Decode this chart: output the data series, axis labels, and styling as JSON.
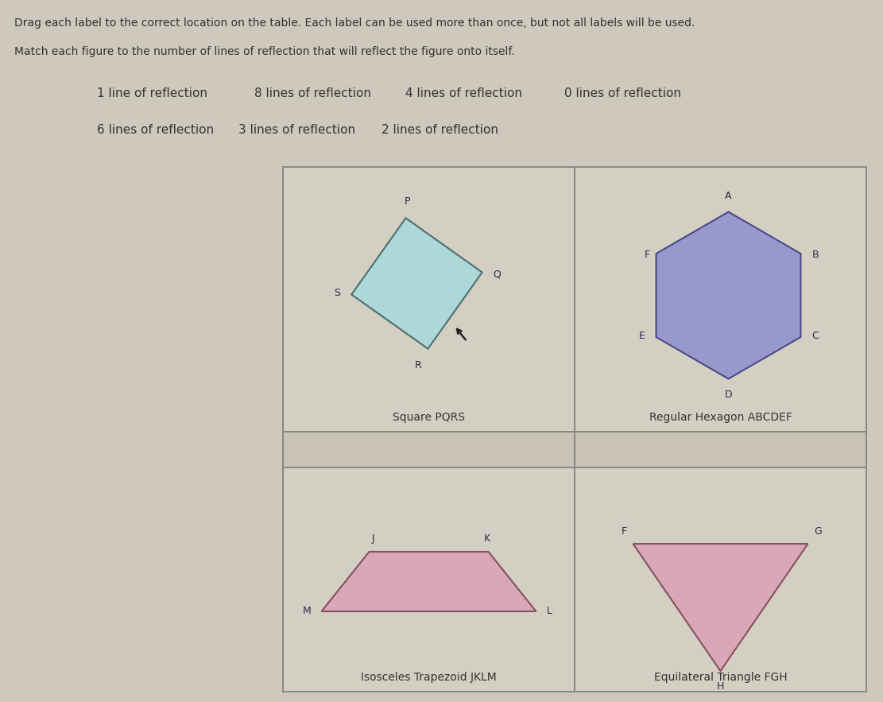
{
  "bg_color": "#cec9bc",
  "text_color": "#333333",
  "dark_text": "#2a2a4a",
  "title1": "Drag each label to the correct location on the table. Each label can be used more than once, but not all labels will be used.",
  "title2": "Match each figure to the number of lines of reflection that will reflect the figure onto itself.",
  "row1_labels": [
    "1 line of reflection",
    "8 lines of reflection",
    "4 lines of reflection",
    "0 lines of reflection"
  ],
  "row2_labels": [
    "6 lines of reflection",
    "3 lines of reflection",
    "2 lines of reflection"
  ],
  "square_color": "#aed8d8",
  "square_edge": "#4a7070",
  "hexagon_color": "#9898cc",
  "hexagon_edge": "#4a4a88",
  "trapezoid_color": "#d8a8b8",
  "trapezoid_edge": "#885060",
  "triangle_color": "#d8a8b8",
  "triangle_edge": "#885060",
  "table_border": "#888880",
  "cell_bg": "#d4cfc3",
  "answer_bg": "#c8c3b6"
}
